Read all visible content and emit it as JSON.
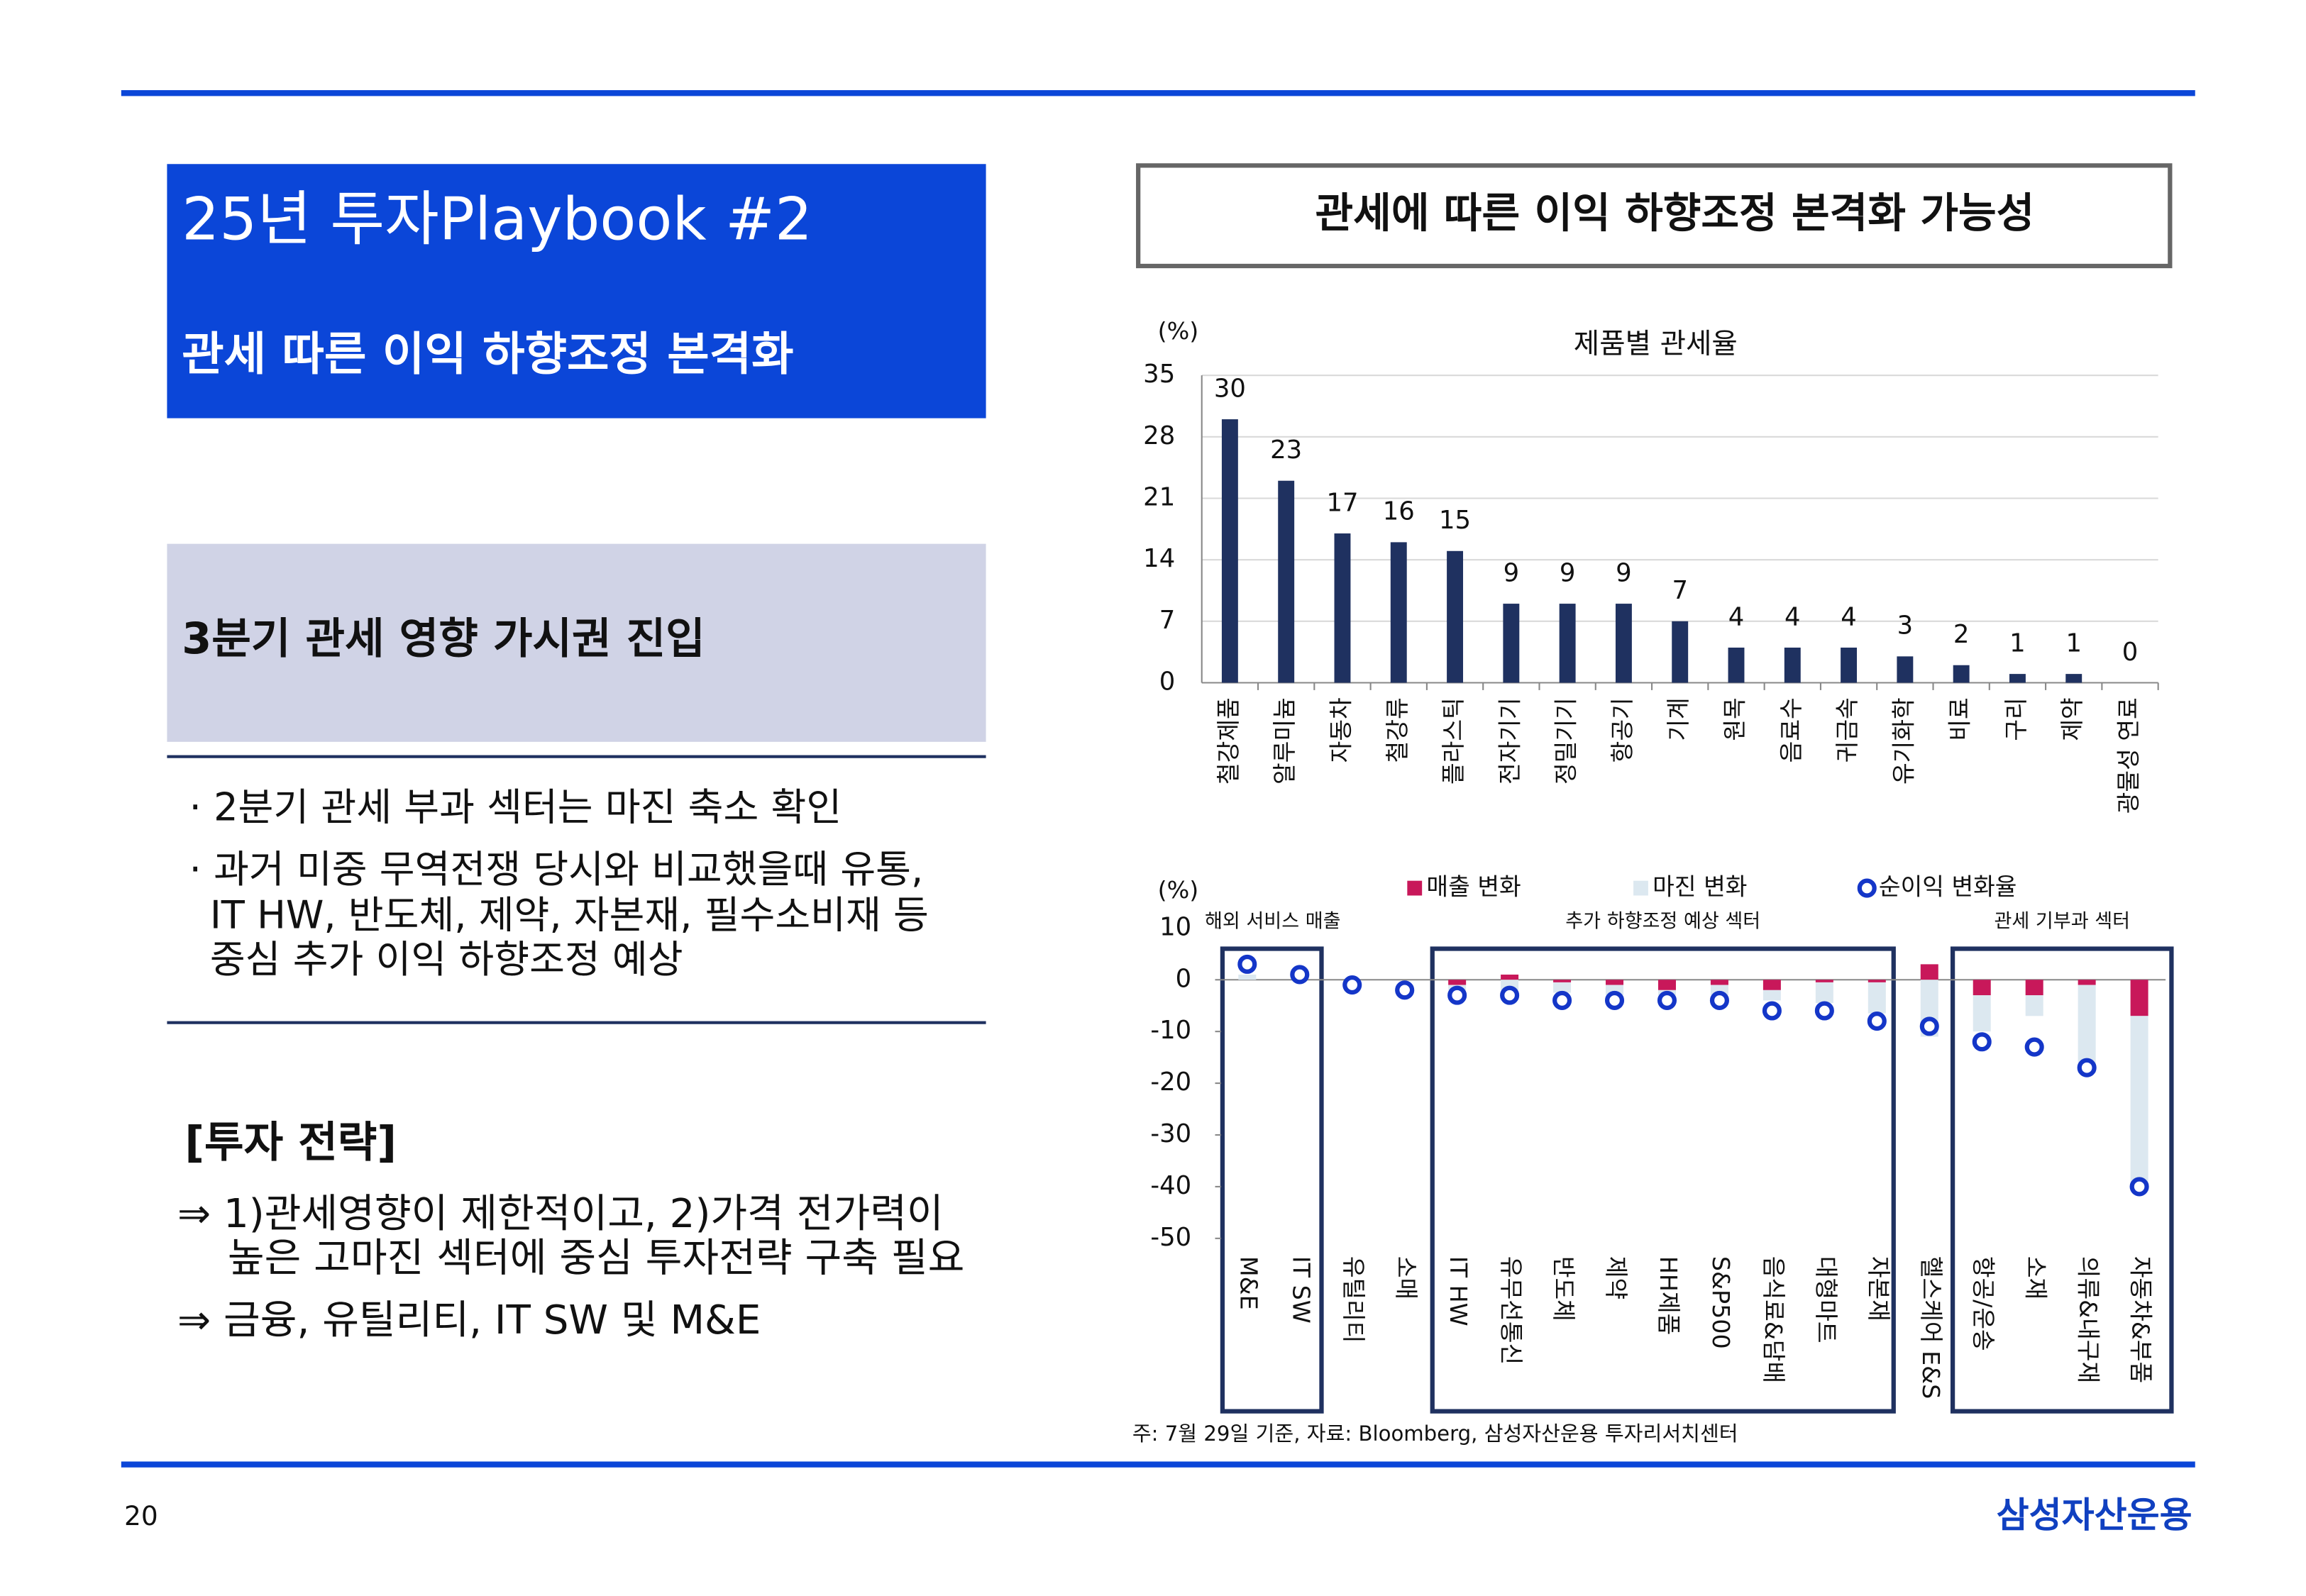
{
  "header": {
    "title": "25년 투자Playbook #2",
    "subtitle": "관세 따른 이익 하향조정 본격화"
  },
  "section": {
    "heading": "3분기 관세 영향 가시권 진입",
    "bullets": [
      [
        "· 2분기 관세 부과 섹터는 마진 축소 확인"
      ],
      [
        "· 과거 미중 무역전쟁 당시와 비교했을때 유통,",
        "IT HW, 반도체, 제약, 자본재, 필수소비재 등",
        "중심 추가 이익 하향조정 예상"
      ]
    ]
  },
  "strategy": {
    "heading": "[투자 전략]",
    "lines": [
      "⇒ 1)관세영향이 제한적이고, 2)가격 전가력이",
      "높은 고마진 섹터에 중심 투자전략 구축 필요",
      "⇒ 금융, 유틸리티, IT SW 및 M&E"
    ]
  },
  "chart_panel_title": "관세에 따른 이익 하향조정 본격화 가능성",
  "chart_data": [
    {
      "type": "bar",
      "title": "제품별 관세율",
      "unit": "(%)",
      "color": "#1f3160",
      "categories": [
        "철강제품",
        "알루미늄",
        "자동차",
        "철강류",
        "플라스틱",
        "전자기기",
        "정밀기기",
        "항공기",
        "기계",
        "원목",
        "음료수",
        "귀금속",
        "유기화학",
        "비료",
        "구리",
        "제약",
        "광물성 연료"
      ],
      "values": [
        30,
        23,
        17,
        16,
        15,
        9,
        9,
        9,
        7,
        4,
        4,
        4,
        3,
        2,
        1,
        1,
        0
      ],
      "ylim": [
        0,
        35
      ],
      "yticks": [
        0,
        7,
        14,
        21,
        28,
        35
      ],
      "grid": true
    },
    {
      "type": "stacked_bar",
      "unit": "(%)",
      "categories": [
        "M&E",
        "IT SW",
        "유틸리티",
        "소매",
        "IT HW",
        "유무선통신",
        "반도체",
        "제약",
        "HH제품",
        "S&P500",
        "음식료&담배",
        "대형마트",
        "자본재",
        "헬스케어 E&S",
        "항공/운송",
        "소재",
        "의류&내구재",
        "자동차&부품"
      ],
      "series": [
        {
          "name": "매출 변화",
          "color": "#c8185a",
          "values": [
            0,
            0,
            0,
            0,
            -1,
            1,
            -0.5,
            -1,
            -2,
            -1,
            -2,
            -0.5,
            -0.5,
            3,
            -3,
            -3,
            -1,
            -7
          ]
        },
        {
          "name": "마진 변화",
          "color": "#dce8f0",
          "values": [
            1,
            0,
            0,
            0,
            -1,
            -2,
            -2,
            -2,
            -1,
            -2,
            -2,
            -4,
            -6,
            -11,
            -7,
            -4,
            -17,
            -33
          ]
        },
        {
          "name": "순이익 변화율",
          "color": "#1436c8",
          "type": "scatter",
          "values": [
            3,
            1,
            -1,
            -2,
            -3,
            -3,
            -4,
            -4,
            -4,
            -4,
            -6,
            -6,
            -8,
            -9,
            -12,
            -13,
            -17,
            -40
          ]
        }
      ],
      "groups": [
        "해외 서비스 매출",
        "추가 하향조정 예상 섹터",
        "관세 기부과 섹터"
      ],
      "ylim": [
        -50,
        10
      ],
      "yticks": [
        -50,
        -40,
        -30,
        -20,
        -10,
        0,
        10
      ],
      "grid": false
    }
  ],
  "footnote": "주: 7월 29일 기준, 자료: Bloomberg, 삼성자산운용 투자리서치센터",
  "page_number": "20",
  "logo": "삼성자산운용"
}
